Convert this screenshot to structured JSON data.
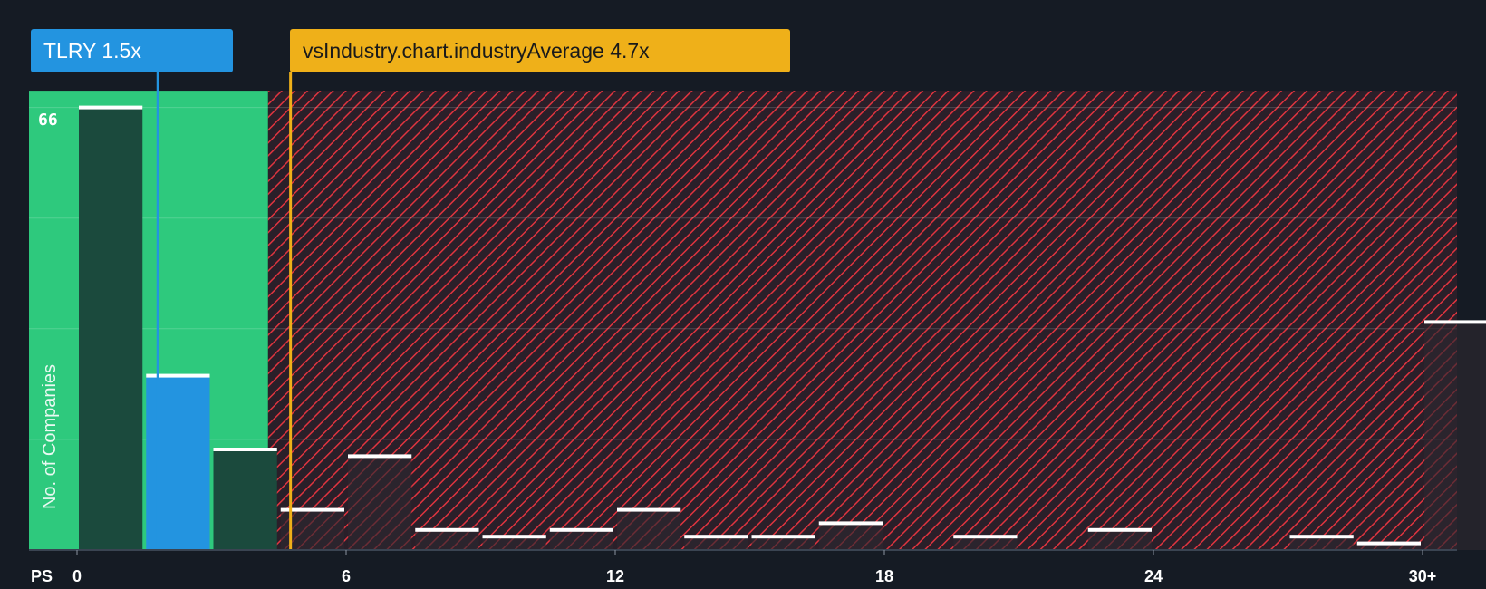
{
  "colors": {
    "background": "#151b24",
    "fair_zone": "#2ec97d",
    "over_zone": "#e0343f",
    "company_bar": "#2394e0",
    "industry_line": "#efb019",
    "cap": "#ffffff"
  },
  "company_label": {
    "ticker": "TLRY",
    "value": "1.5x",
    "text": "TLRY 1.5x"
  },
  "industry_label": {
    "text": "vsIndustry.chart.industryAverage 4.7x"
  },
  "chart_data": {
    "type": "bar",
    "xlabel": "PS",
    "ylabel": "No. of Companies",
    "x_ticks": [
      {
        "label": "0",
        "value": 0
      },
      {
        "label": "6",
        "value": 6
      },
      {
        "label": "12",
        "value": 12
      },
      {
        "label": "18",
        "value": 18
      },
      {
        "label": "24",
        "value": 24
      },
      {
        "label": "30+",
        "value": 30
      }
    ],
    "y_max_label": "66",
    "ylim": [
      0,
      68.5
    ],
    "y_gridlines": [
      16.5,
      33,
      49.5,
      66
    ],
    "bin_width": 1.5,
    "bins": [
      {
        "x": 0,
        "count": 66
      },
      {
        "x": 1.5,
        "count": 26,
        "highlight": true
      },
      {
        "x": 3,
        "count": 15
      },
      {
        "x": 4.5,
        "count": 6
      },
      {
        "x": 6,
        "count": 14
      },
      {
        "x": 7.5,
        "count": 3
      },
      {
        "x": 9,
        "count": 2
      },
      {
        "x": 10.5,
        "count": 3
      },
      {
        "x": 12,
        "count": 6
      },
      {
        "x": 13.5,
        "count": 2
      },
      {
        "x": 15,
        "count": 2
      },
      {
        "x": 16.5,
        "count": 4
      },
      {
        "x": 18,
        "count": 0
      },
      {
        "x": 19.5,
        "count": 2
      },
      {
        "x": 21,
        "count": 0
      },
      {
        "x": 22.5,
        "count": 3
      },
      {
        "x": 24,
        "count": 0
      },
      {
        "x": 25.5,
        "count": 0
      },
      {
        "x": 27,
        "count": 2
      },
      {
        "x": 28.5,
        "count": 1
      },
      {
        "x": 30,
        "count": 34
      }
    ],
    "company_value": 1.5,
    "industry_average": 4.7,
    "fair_zone_max": 4.5,
    "grid": true
  }
}
